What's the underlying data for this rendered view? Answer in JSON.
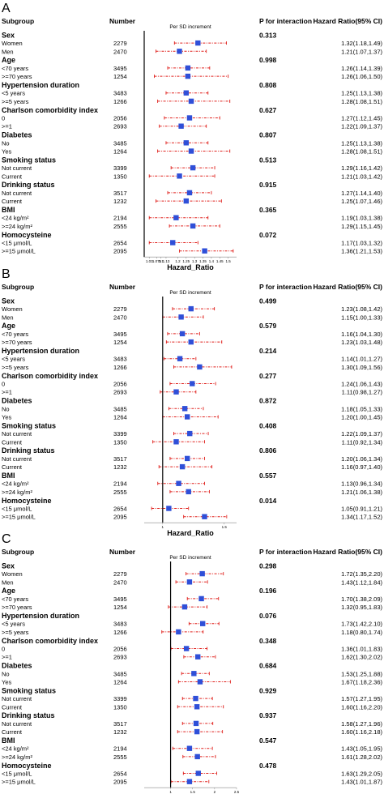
{
  "columns": {
    "subgroup": "Subgroup",
    "number": "Number",
    "p_interaction": "P for interaction",
    "hr": "Hazard Ratio(95% CI)"
  },
  "chart_data": [
    {
      "type": "forest",
      "panel_label": "A",
      "title": "Per SD increment",
      "xlabel": "Hazard_Ratio",
      "ref_value": 1,
      "xlim": [
        1.0,
        1.55
      ],
      "ticks": [
        "1.03",
        "1.075",
        "1.1",
        "1.13",
        "1.2",
        "1.25",
        "1.3",
        "1.35",
        "1.4",
        "1.45",
        "1.5"
      ],
      "groups": [
        {
          "name": "Sex",
          "p": "0.313",
          "rows": [
            {
              "label": "Women",
              "n": "2279",
              "hr": 1.32,
              "lo": 1.18,
              "hi": 1.49,
              "text": "1.32(1.18,1.49)"
            },
            {
              "label": "Men",
              "n": "2470",
              "hr": 1.21,
              "lo": 1.07,
              "hi": 1.37,
              "text": "1.21(1.07,1.37)"
            }
          ]
        },
        {
          "name": "Age",
          "p": "0.998",
          "rows": [
            {
              "label": "<70 years",
              "n": "3495",
              "hr": 1.26,
              "lo": 1.14,
              "hi": 1.39,
              "text": "1.26(1.14,1.39)"
            },
            {
              "label": ">=70 years",
              "n": "1254",
              "hr": 1.26,
              "lo": 1.06,
              "hi": 1.5,
              "text": "1.26(1.06,1.50)"
            }
          ]
        },
        {
          "name": "Hypertension duration",
          "p": "0.808",
          "rows": [
            {
              "label": "<5 years",
              "n": "3483",
              "hr": 1.25,
              "lo": 1.13,
              "hi": 1.38,
              "text": "1.25(1.13,1.38)"
            },
            {
              "label": ">=5 years",
              "n": "1266",
              "hr": 1.28,
              "lo": 1.08,
              "hi": 1.51,
              "text": "1.28(1.08,1.51)"
            }
          ]
        },
        {
          "name": "Charlson comorbidity index",
          "p": "0.627",
          "rows": [
            {
              "label": "0",
              "n": "2056",
              "hr": 1.27,
              "lo": 1.12,
              "hi": 1.45,
              "text": "1.27(1.12,1.45)"
            },
            {
              "label": ">=1",
              "n": "2693",
              "hr": 1.22,
              "lo": 1.09,
              "hi": 1.37,
              "text": "1.22(1.09,1.37)"
            }
          ]
        },
        {
          "name": "Diabetes",
          "p": "0.807",
          "rows": [
            {
              "label": "No",
              "n": "3485",
              "hr": 1.25,
              "lo": 1.13,
              "hi": 1.38,
              "text": "1.25(1.13,1.38)"
            },
            {
              "label": "Yes",
              "n": "1264",
              "hr": 1.28,
              "lo": 1.08,
              "hi": 1.51,
              "text": "1.28(1.08,1.51)"
            }
          ]
        },
        {
          "name": "Smoking status",
          "p": "0.513",
          "rows": [
            {
              "label": "Not current",
              "n": "3399",
              "hr": 1.29,
              "lo": 1.16,
              "hi": 1.42,
              "text": "1.29(1.16,1.42)"
            },
            {
              "label": "Current",
              "n": "1350",
              "hr": 1.21,
              "lo": 1.03,
              "hi": 1.42,
              "text": "1.21(1.03,1.42)"
            }
          ]
        },
        {
          "name": "Drinking status",
          "p": "0.915",
          "rows": [
            {
              "label": "Not current",
              "n": "3517",
              "hr": 1.27,
              "lo": 1.14,
              "hi": 1.4,
              "text": "1.27(1.14,1.40)"
            },
            {
              "label": "Current",
              "n": "1232",
              "hr": 1.25,
              "lo": 1.07,
              "hi": 1.46,
              "text": "1.25(1.07,1.46)"
            }
          ]
        },
        {
          "name": "BMI",
          "p": "0.365",
          "rows": [
            {
              "label": "<24 kg/m²",
              "n": "2194",
              "hr": 1.19,
              "lo": 1.03,
              "hi": 1.38,
              "text": "1.19(1.03,1.38)"
            },
            {
              "label": ">=24 kg/m²",
              "n": "2555",
              "hr": 1.29,
              "lo": 1.15,
              "hi": 1.45,
              "text": "1.29(1.15,1.45)"
            }
          ]
        },
        {
          "name": "Homocysteine",
          "p": "0.072",
          "rows": [
            {
              "label": "<15 μmol/L",
              "n": "2654",
              "hr": 1.17,
              "lo": 1.03,
              "hi": 1.32,
              "text": "1.17(1.03,1.32)"
            },
            {
              "label": ">=15 μmol/L",
              "n": "2095",
              "hr": 1.36,
              "lo": 1.21,
              "hi": 1.53,
              "text": "1.36(1.21,1.53)"
            }
          ]
        }
      ]
    },
    {
      "type": "forest",
      "panel_label": "B",
      "title": "Per SD increment",
      "xlabel": "Hazard_Ratio",
      "ref_value": 1,
      "xlim": [
        0.85,
        1.6
      ],
      "ticks": [
        "1",
        "1.5"
      ],
      "groups": [
        {
          "name": "Sex",
          "p": "0.499",
          "rows": [
            {
              "label": "Women",
              "n": "2279",
              "hr": 1.23,
              "lo": 1.08,
              "hi": 1.42,
              "text": "1.23(1.08,1.42)"
            },
            {
              "label": "Men",
              "n": "2470",
              "hr": 1.15,
              "lo": 1.0,
              "hi": 1.33,
              "text": "1.15(1.00,1.33)"
            }
          ]
        },
        {
          "name": "Age",
          "p": "0.579",
          "rows": [
            {
              "label": "<70 years",
              "n": "3495",
              "hr": 1.16,
              "lo": 1.04,
              "hi": 1.3,
              "text": "1.16(1.04,1.30)"
            },
            {
              "label": ">=70 years",
              "n": "1254",
              "hr": 1.23,
              "lo": 1.03,
              "hi": 1.48,
              "text": "1.23(1.03,1.48)"
            }
          ]
        },
        {
          "name": "Hypertension duration",
          "p": "0.214",
          "rows": [
            {
              "label": "<5 years",
              "n": "3483",
              "hr": 1.14,
              "lo": 1.01,
              "hi": 1.27,
              "text": "1.14(1.01,1.27)"
            },
            {
              "label": ">=5 years",
              "n": "1266",
              "hr": 1.3,
              "lo": 1.09,
              "hi": 1.56,
              "text": "1.30(1.09,1.56)"
            }
          ]
        },
        {
          "name": "Charlson comorbidity index",
          "p": "0.277",
          "rows": [
            {
              "label": "0",
              "n": "2056",
              "hr": 1.24,
              "lo": 1.06,
              "hi": 1.43,
              "text": "1.24(1.06,1.43)"
            },
            {
              "label": ">=1",
              "n": "2693",
              "hr": 1.11,
              "lo": 0.98,
              "hi": 1.27,
              "text": "1.11(0.98,1.27)"
            }
          ]
        },
        {
          "name": "Diabetes",
          "p": "0.872",
          "rows": [
            {
              "label": "No",
              "n": "3485",
              "hr": 1.18,
              "lo": 1.05,
              "hi": 1.33,
              "text": "1.18(1.05,1.33)"
            },
            {
              "label": "Yes",
              "n": "1264",
              "hr": 1.2,
              "lo": 1.0,
              "hi": 1.45,
              "text": "1.20(1.00,1.45)"
            }
          ]
        },
        {
          "name": "Smoking status",
          "p": "0.408",
          "rows": [
            {
              "label": "Not current",
              "n": "3399",
              "hr": 1.22,
              "lo": 1.09,
              "hi": 1.37,
              "text": "1.22(1.09,1.37)"
            },
            {
              "label": "Current",
              "n": "1350",
              "hr": 1.11,
              "lo": 0.92,
              "hi": 1.34,
              "text": "1.11(0.92,1.34)"
            }
          ]
        },
        {
          "name": "Drinking status",
          "p": "0.806",
          "rows": [
            {
              "label": "Not current",
              "n": "3517",
              "hr": 1.2,
              "lo": 1.06,
              "hi": 1.34,
              "text": "1.20(1.06,1.34)"
            },
            {
              "label": "Current",
              "n": "1232",
              "hr": 1.16,
              "lo": 0.97,
              "hi": 1.4,
              "text": "1.16(0.97,1.40)"
            }
          ]
        },
        {
          "name": "BMI",
          "p": "0.557",
          "rows": [
            {
              "label": "<24 kg/m²",
              "n": "2194",
              "hr": 1.13,
              "lo": 0.96,
              "hi": 1.34,
              "text": "1.13(0.96,1.34)"
            },
            {
              "label": ">=24 kg/m²",
              "n": "2555",
              "hr": 1.21,
              "lo": 1.06,
              "hi": 1.38,
              "text": "1.21(1.06,1.38)"
            }
          ]
        },
        {
          "name": "Homocysteine",
          "p": "0.014",
          "rows": [
            {
              "label": "<15 μmol/L",
              "n": "2654",
              "hr": 1.05,
              "lo": 0.91,
              "hi": 1.21,
              "text": "1.05(0.91,1.21)"
            },
            {
              "label": ">=15 μmol/L",
              "n": "2095",
              "hr": 1.34,
              "lo": 1.17,
              "hi": 1.52,
              "text": "1.34(1.17,1.52)"
            }
          ]
        }
      ]
    },
    {
      "type": "forest",
      "panel_label": "C",
      "title": "Per SD increment",
      "xlabel": "Hazard_Ratio",
      "ref_value": 1,
      "xlim": [
        0.4,
        2.5
      ],
      "ticks": [
        "1",
        "1.5",
        "2",
        "2.5"
      ],
      "groups": [
        {
          "name": "Sex",
          "p": "0.298",
          "rows": [
            {
              "label": "Women",
              "n": "2279",
              "hr": 1.72,
              "lo": 1.35,
              "hi": 2.2,
              "text": "1.72(1.35,2.20)"
            },
            {
              "label": "Men",
              "n": "2470",
              "hr": 1.43,
              "lo": 1.12,
              "hi": 1.84,
              "text": "1.43(1.12,1.84)"
            }
          ]
        },
        {
          "name": "Age",
          "p": "0.196",
          "rows": [
            {
              "label": "<70 years",
              "n": "3495",
              "hr": 1.7,
              "lo": 1.38,
              "hi": 2.09,
              "text": "1.70(1.38,2.09)"
            },
            {
              "label": ">=70 years",
              "n": "1254",
              "hr": 1.32,
              "lo": 0.95,
              "hi": 1.83,
              "text": "1.32(0.95,1.83)"
            }
          ]
        },
        {
          "name": "Hypertension duration",
          "p": "0.076",
          "rows": [
            {
              "label": "<5 years",
              "n": "3483",
              "hr": 1.73,
              "lo": 1.42,
              "hi": 2.1,
              "text": "1.73(1.42,2.10)"
            },
            {
              "label": ">=5 years",
              "n": "1266",
              "hr": 1.18,
              "lo": 0.8,
              "hi": 1.74,
              "text": "1.18(0.80,1.74)"
            }
          ]
        },
        {
          "name": "Charlson comorbidity index",
          "p": "0.348",
          "rows": [
            {
              "label": "0",
              "n": "2056",
              "hr": 1.36,
              "lo": 1.01,
              "hi": 1.83,
              "text": "1.36(1.01,1.83)"
            },
            {
              "label": ">=1",
              "n": "2693",
              "hr": 1.62,
              "lo": 1.3,
              "hi": 2.02,
              "text": "1.62(1.30,2.02)"
            }
          ]
        },
        {
          "name": "Diabetes",
          "p": "0.684",
          "rows": [
            {
              "label": "No",
              "n": "3485",
              "hr": 1.53,
              "lo": 1.25,
              "hi": 1.88,
              "text": "1.53(1.25,1.88)"
            },
            {
              "label": "Yes",
              "n": "1264",
              "hr": 1.67,
              "lo": 1.18,
              "hi": 2.36,
              "text": "1.67(1.18,2.36)"
            }
          ]
        },
        {
          "name": "Smoking status",
          "p": "0.929",
          "rows": [
            {
              "label": "Not current",
              "n": "3399",
              "hr": 1.57,
              "lo": 1.27,
              "hi": 1.95,
              "text": "1.57(1.27,1.95)"
            },
            {
              "label": "Current",
              "n": "1350",
              "hr": 1.6,
              "lo": 1.16,
              "hi": 2.2,
              "text": "1.60(1.16,2.20)"
            }
          ]
        },
        {
          "name": "Drinking status",
          "p": "0.937",
          "rows": [
            {
              "label": "Not current",
              "n": "3517",
              "hr": 1.58,
              "lo": 1.27,
              "hi": 1.96,
              "text": "1.58(1.27,1.96)"
            },
            {
              "label": "Current",
              "n": "1232",
              "hr": 1.6,
              "lo": 1.16,
              "hi": 2.18,
              "text": "1.60(1.16,2.18)"
            }
          ]
        },
        {
          "name": "BMI",
          "p": "0.547",
          "rows": [
            {
              "label": "<24 kg/m²",
              "n": "2194",
              "hr": 1.43,
              "lo": 1.05,
              "hi": 1.95,
              "text": "1.43(1.05,1.95)"
            },
            {
              "label": ">=24 kg/m²",
              "n": "2555",
              "hr": 1.61,
              "lo": 1.28,
              "hi": 2.02,
              "text": "1.61(1.28,2.02)"
            }
          ]
        },
        {
          "name": "Homocysteine",
          "p": "0.478",
          "rows": [
            {
              "label": "<15 μmol/L",
              "n": "2654",
              "hr": 1.63,
              "lo": 1.29,
              "hi": 2.05,
              "text": "1.63(1.29,2.05)"
            },
            {
              "label": ">=15 μmol/L",
              "n": "2095",
              "hr": 1.43,
              "lo": 1.01,
              "hi": 1.87,
              "text": "1.43(1.01,1.87)"
            }
          ]
        }
      ]
    }
  ],
  "colors": {
    "marker": "#2f4fd8",
    "ci": "#e0201c",
    "axis": "#000000"
  }
}
